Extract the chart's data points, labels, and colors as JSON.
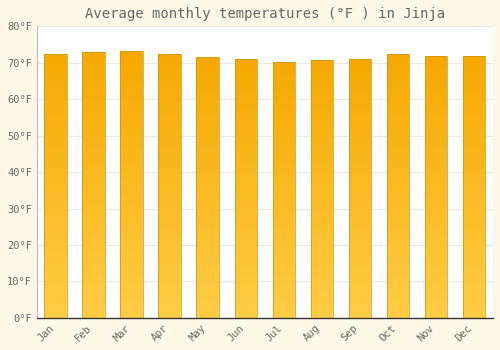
{
  "title": "Average monthly temperatures (°F ) in Jinja",
  "months": [
    "Jan",
    "Feb",
    "Mar",
    "Apr",
    "May",
    "Jun",
    "Jul",
    "Aug",
    "Sep",
    "Oct",
    "Nov",
    "Dec"
  ],
  "temperatures": [
    72.5,
    73.0,
    73.2,
    72.3,
    71.6,
    70.9,
    70.3,
    70.7,
    71.1,
    72.3,
    71.8,
    71.8
  ],
  "bar_color_top": "#F5A800",
  "bar_color_bottom": "#FFCC44",
  "bar_edge_color": "#C8940A",
  "background_color": "#FFFFFF",
  "outer_background": "#FFF8E8",
  "grid_color": "#E8E8E8",
  "text_color": "#666666",
  "ylim": [
    0,
    80
  ],
  "ytick_step": 10,
  "title_fontsize": 10,
  "tick_fontsize": 7.5,
  "bar_width": 0.6,
  "figsize": [
    5.0,
    3.5
  ],
  "dpi": 100
}
